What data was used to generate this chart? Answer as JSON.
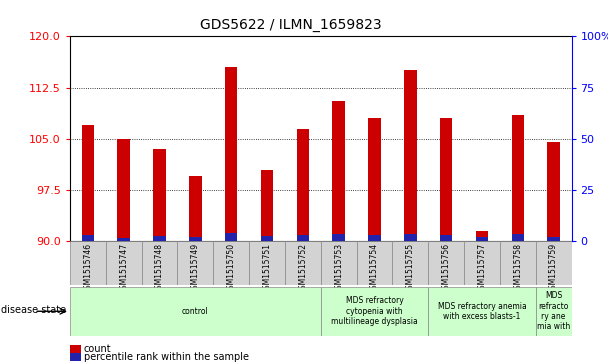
{
  "title": "GDS5622 / ILMN_1659823",
  "samples": [
    "GSM1515746",
    "GSM1515747",
    "GSM1515748",
    "GSM1515749",
    "GSM1515750",
    "GSM1515751",
    "GSM1515752",
    "GSM1515753",
    "GSM1515754",
    "GSM1515755",
    "GSM1515756",
    "GSM1515757",
    "GSM1515758",
    "GSM1515759"
  ],
  "count_values": [
    107.0,
    105.0,
    103.5,
    99.5,
    115.5,
    100.5,
    106.5,
    110.5,
    108.0,
    115.0,
    108.0,
    91.5,
    108.5,
    104.5
  ],
  "percentile_values": [
    3,
    1.5,
    2.5,
    2,
    4,
    2.5,
    3,
    3.5,
    3,
    3.5,
    3,
    2,
    3.5,
    2
  ],
  "ymin": 90,
  "ymax": 120,
  "yticks_left": [
    90,
    97.5,
    105,
    112.5,
    120
  ],
  "yticks_right": [
    0,
    25,
    50,
    75,
    100
  ],
  "bar_color": "#CC0000",
  "percentile_color": "#2222AA",
  "disease_groups": [
    {
      "label": "control",
      "start": 0,
      "end": 7,
      "color": "#CCFFCC"
    },
    {
      "label": "MDS refractory\ncytopenia with\nmultilineage dysplasia",
      "start": 7,
      "end": 10,
      "color": "#CCFFCC"
    },
    {
      "label": "MDS refractory anemia\nwith excess blasts-1",
      "start": 10,
      "end": 13,
      "color": "#CCFFCC"
    },
    {
      "label": "MDS\nrefracto\nry ane\nmia with",
      "start": 13,
      "end": 14,
      "color": "#CCFFCC"
    }
  ]
}
